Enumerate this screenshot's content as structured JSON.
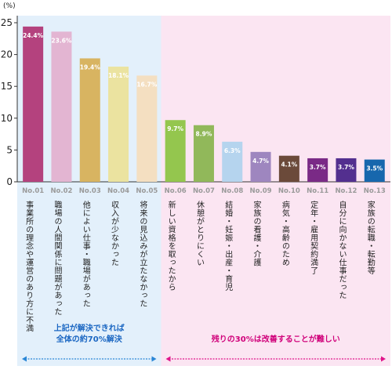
{
  "chart_data": {
    "type": "bar",
    "title": "",
    "xlabel": "",
    "ylabel": "",
    "unit": "(%)",
    "ylim": [
      0,
      25
    ],
    "yticks": [
      0,
      5,
      10,
      15,
      20,
      25
    ],
    "grid": false,
    "categories": [
      "事業所の理念や運営のあり方に不満",
      "職場の人間関係に問題があった",
      "他によい仕事・職場があった",
      "収入が少なかった",
      "将来の見込みが立たなかった",
      "新しい資格を取ったから",
      "休憩がとりにくい",
      "結婚・妊娠・出産・育児",
      "家族の看護・介護",
      "病気・高齢のため",
      "定年・雇用契約満了",
      "自分に向かない仕事だった",
      "家族の転職・転勤等"
    ],
    "numbers": [
      "No.01",
      "No.02",
      "No.03",
      "No.04",
      "No.05",
      "No.06",
      "No.07",
      "No.08",
      "No.09",
      "No.10",
      "No.11",
      "No.12",
      "No.13"
    ],
    "values": [
      24.4,
      23.6,
      19.4,
      18.1,
      16.7,
      9.7,
      8.9,
      6.3,
      4.7,
      4.1,
      3.7,
      3.7,
      3.5
    ],
    "value_labels": [
      "24.4%",
      "23.6%",
      "19.4%",
      "18.1%",
      "16.7%",
      "9.7%",
      "8.9%",
      "6.3%",
      "4.7%",
      "4.1%",
      "3.7%",
      "3.7%",
      "3.5%"
    ],
    "colors": [
      "#b4427e",
      "#e3b5d2",
      "#d8b461",
      "#ebe3a0",
      "#f4dfc1",
      "#94c64e",
      "#91b85a",
      "#b5d4ee",
      "#9e86bf",
      "#6b4a3a",
      "#7a2a86",
      "#532f8f",
      "#1767ad"
    ],
    "label_colors": [
      "#ffffff",
      "#ffffff",
      "#ffffff",
      "#ffffff",
      "#ffffff",
      "#ffffff",
      "#ffffff",
      "#ffffff",
      "#ffffff",
      "#ffffff",
      "#ffffff",
      "#ffffff",
      "#ffffff"
    ],
    "groups": [
      {
        "from": 0,
        "to": 4,
        "color": "#e3f0fb",
        "note_lines": [
          "上記が解決できれば",
          "全体の約70%解決"
        ]
      },
      {
        "from": 5,
        "to": 12,
        "color": "#fbe5f2",
        "note_lines": [
          "残りの30%は改善することが難しい"
        ]
      }
    ]
  }
}
